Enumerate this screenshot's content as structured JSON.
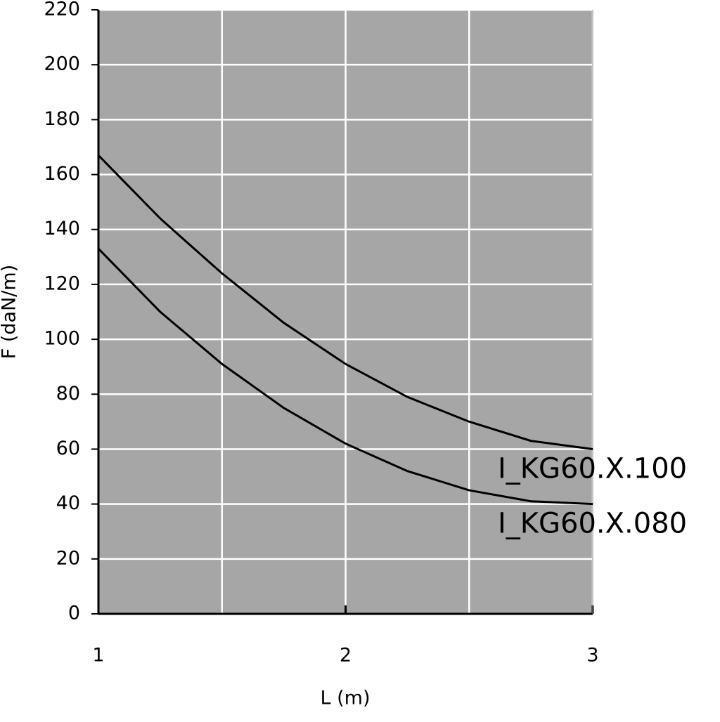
{
  "chart_data": {
    "type": "line",
    "xlabel": "L (m)",
    "ylabel": "F (daN/m)",
    "x": [
      1,
      1.25,
      1.5,
      1.75,
      2,
      2.25,
      2.5,
      2.75,
      3
    ],
    "series": [
      {
        "name": "I_KG60.X.100",
        "color": "#000000",
        "values": [
          167,
          144,
          124,
          106,
          91,
          79,
          70,
          63,
          60
        ]
      },
      {
        "name": "I_KG60.X.080",
        "color": "#000000",
        "values": [
          133,
          110,
          91,
          75,
          62,
          52,
          45,
          41,
          40
        ]
      }
    ],
    "xlim": [
      1,
      3
    ],
    "xticks": [
      1,
      2,
      3
    ],
    "x_minor_grid": [
      1.5,
      2.5
    ],
    "ylim": [
      0,
      220
    ],
    "yticks": [
      0,
      20,
      40,
      60,
      80,
      100,
      120,
      140,
      160,
      180,
      200,
      220
    ],
    "grid": true,
    "background": "#a6a6a6",
    "grid_color": "#ffffff"
  }
}
